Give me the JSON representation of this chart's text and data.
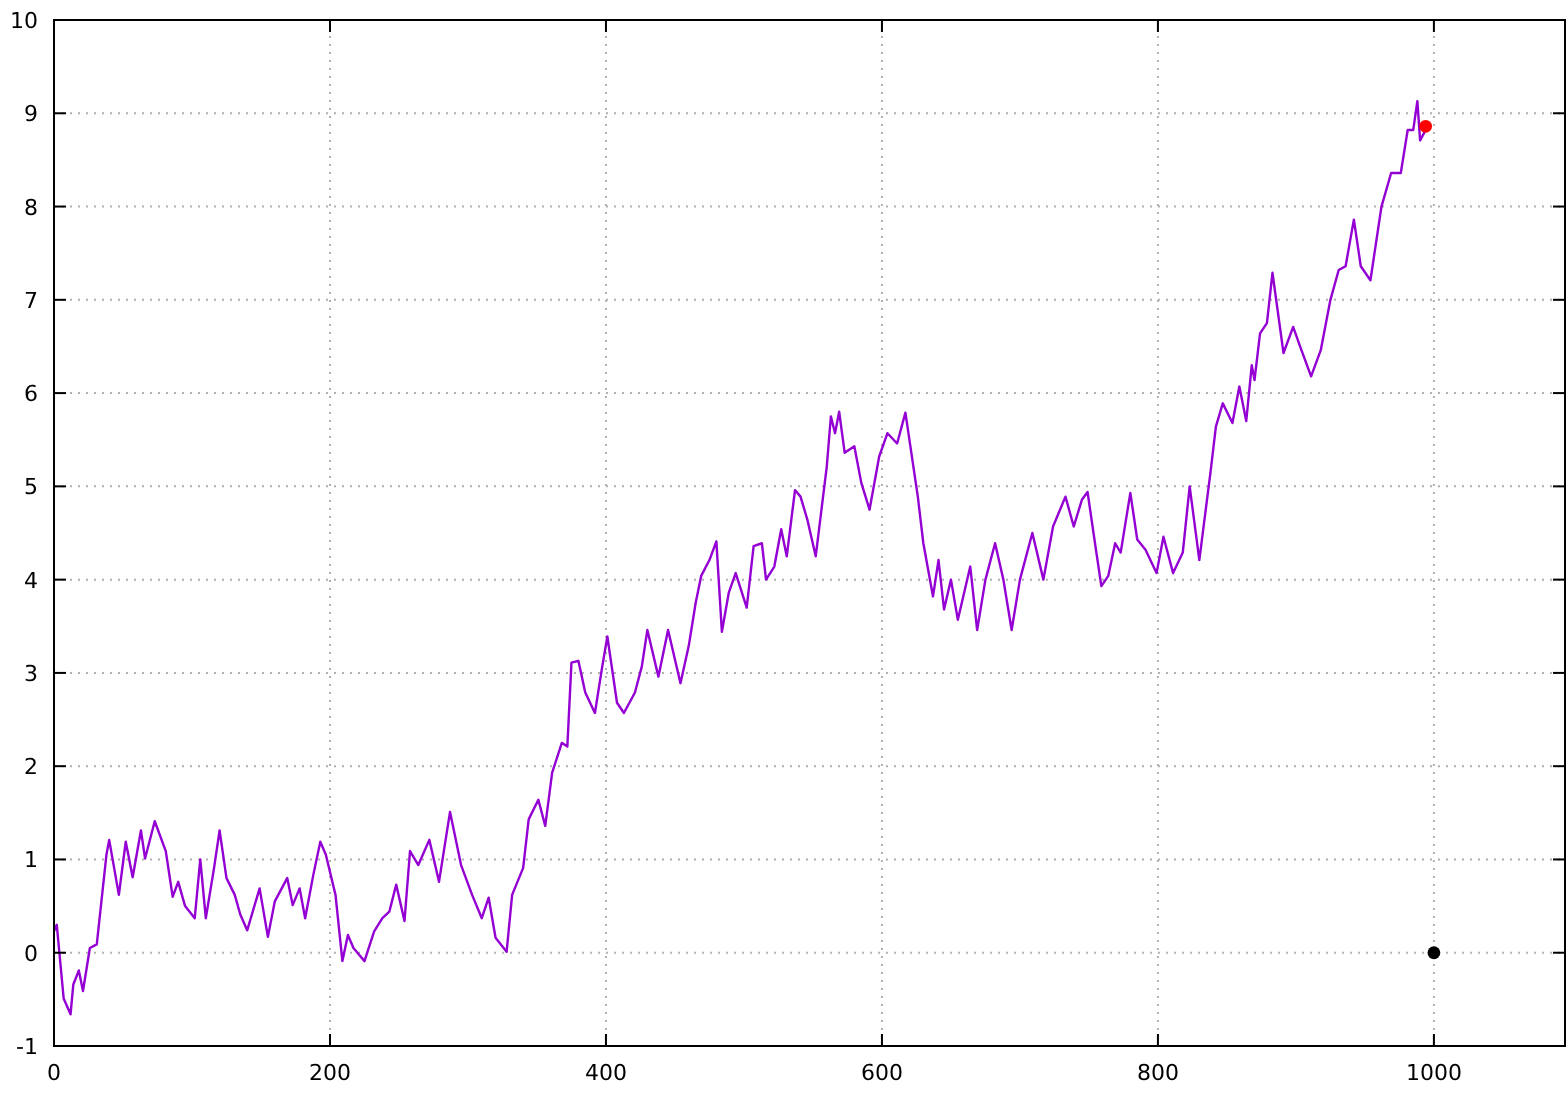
{
  "chart_data": {
    "type": "line",
    "xlim": [
      0,
      1095
    ],
    "ylim": [
      -1,
      10
    ],
    "xticks": [
      0,
      200,
      400,
      600,
      800,
      1000
    ],
    "yticks": [
      -1,
      0,
      1,
      2,
      3,
      4,
      5,
      6,
      7,
      8,
      9,
      10
    ],
    "grid": true,
    "series": [
      {
        "color": "#9400d3",
        "marker": "none",
        "x": [
          0,
          2,
          7,
          12,
          14,
          18,
          21,
          26,
          31,
          38,
          40,
          47,
          52,
          57,
          63,
          66,
          73,
          81,
          86,
          90,
          95,
          102,
          106,
          110,
          116,
          120,
          125,
          131,
          135,
          140,
          149,
          155,
          160,
          169,
          173,
          178,
          182,
          188,
          193,
          197,
          204,
          209,
          213,
          217,
          225,
          232,
          238,
          243,
          248,
          254,
          258,
          264,
          272,
          279,
          287,
          295,
          303,
          310,
          315,
          320,
          328,
          332,
          340,
          344,
          351,
          356,
          361,
          368,
          372,
          375,
          380,
          385,
          392,
          397,
          401,
          408,
          413,
          421,
          426,
          430,
          438,
          445,
          454,
          460,
          465,
          469,
          475,
          480,
          484,
          489,
          494,
          502,
          507,
          513,
          516,
          522,
          527,
          531,
          537,
          541,
          546,
          552,
          560,
          563,
          566,
          569,
          573,
          580,
          585,
          591,
          598,
          604,
          611,
          617,
          626,
          630,
          637,
          641,
          645,
          650,
          655,
          664,
          669,
          675,
          682,
          688,
          694,
          700,
          709,
          717,
          724,
          733,
          739,
          745,
          749,
          754,
          759,
          764,
          769,
          773,
          780,
          785,
          791,
          799,
          804,
          811,
          818,
          823,
          830,
          838,
          842,
          847,
          854,
          859,
          864,
          868,
          870,
          874,
          879,
          883,
          891,
          898,
          903,
          911,
          918,
          925,
          931,
          936,
          942,
          947,
          954,
          962,
          969,
          976,
          981,
          985,
          988,
          990,
          994
        ],
        "values": [
          0.23,
          0.3,
          -0.49,
          -0.66,
          -0.34,
          -0.19,
          -0.41,
          0.05,
          0.09,
          1.05,
          1.21,
          0.62,
          1.19,
          0.81,
          1.31,
          1.01,
          1.41,
          1.09,
          0.6,
          0.76,
          0.5,
          0.37,
          1.0,
          0.37,
          0.91,
          1.31,
          0.8,
          0.62,
          0.41,
          0.24,
          0.69,
          0.17,
          0.55,
          0.8,
          0.51,
          0.69,
          0.37,
          0.84,
          1.19,
          1.05,
          0.62,
          -0.09,
          0.19,
          0.05,
          -0.09,
          0.23,
          0.37,
          0.44,
          0.73,
          0.34,
          1.09,
          0.94,
          1.21,
          0.76,
          1.51,
          0.94,
          0.62,
          0.37,
          0.59,
          0.16,
          0.01,
          0.62,
          0.91,
          1.43,
          1.64,
          1.36,
          1.93,
          2.25,
          2.21,
          3.11,
          3.13,
          2.79,
          2.57,
          3.04,
          3.39,
          2.68,
          2.57,
          2.79,
          3.07,
          3.46,
          2.96,
          3.46,
          2.89,
          3.29,
          3.75,
          4.04,
          4.21,
          4.41,
          3.44,
          3.86,
          4.07,
          3.7,
          4.36,
          4.39,
          4.0,
          4.14,
          4.54,
          4.25,
          4.96,
          4.89,
          4.64,
          4.25,
          5.21,
          5.75,
          5.57,
          5.8,
          5.36,
          5.43,
          5.04,
          4.75,
          5.32,
          5.57,
          5.46,
          5.79,
          4.89,
          4.39,
          3.82,
          4.21,
          3.68,
          4.0,
          3.57,
          4.14,
          3.46,
          4.0,
          4.39,
          4.0,
          3.46,
          4.0,
          4.5,
          4.0,
          4.57,
          4.89,
          4.57,
          4.86,
          4.94,
          4.43,
          3.93,
          4.04,
          4.39,
          4.29,
          4.93,
          4.43,
          4.32,
          4.07,
          4.46,
          4.07,
          4.29,
          5.0,
          4.21,
          5.14,
          5.64,
          5.89,
          5.68,
          6.07,
          5.7,
          6.3,
          6.14,
          6.64,
          6.75,
          7.29,
          6.43,
          6.71,
          6.5,
          6.18,
          6.46,
          7.0,
          7.32,
          7.36,
          7.86,
          7.36,
          7.21,
          8.0,
          8.36,
          8.36,
          8.82,
          8.82,
          9.13,
          8.71,
          8.82
        ]
      },
      {
        "type": "scatter",
        "color": "#ff0000",
        "marker": "circle",
        "x": [
          994
        ],
        "values": [
          8.86
        ]
      },
      {
        "type": "scatter",
        "color": "#000000",
        "marker": "circle",
        "x": [
          1000
        ],
        "values": [
          0
        ]
      }
    ]
  }
}
